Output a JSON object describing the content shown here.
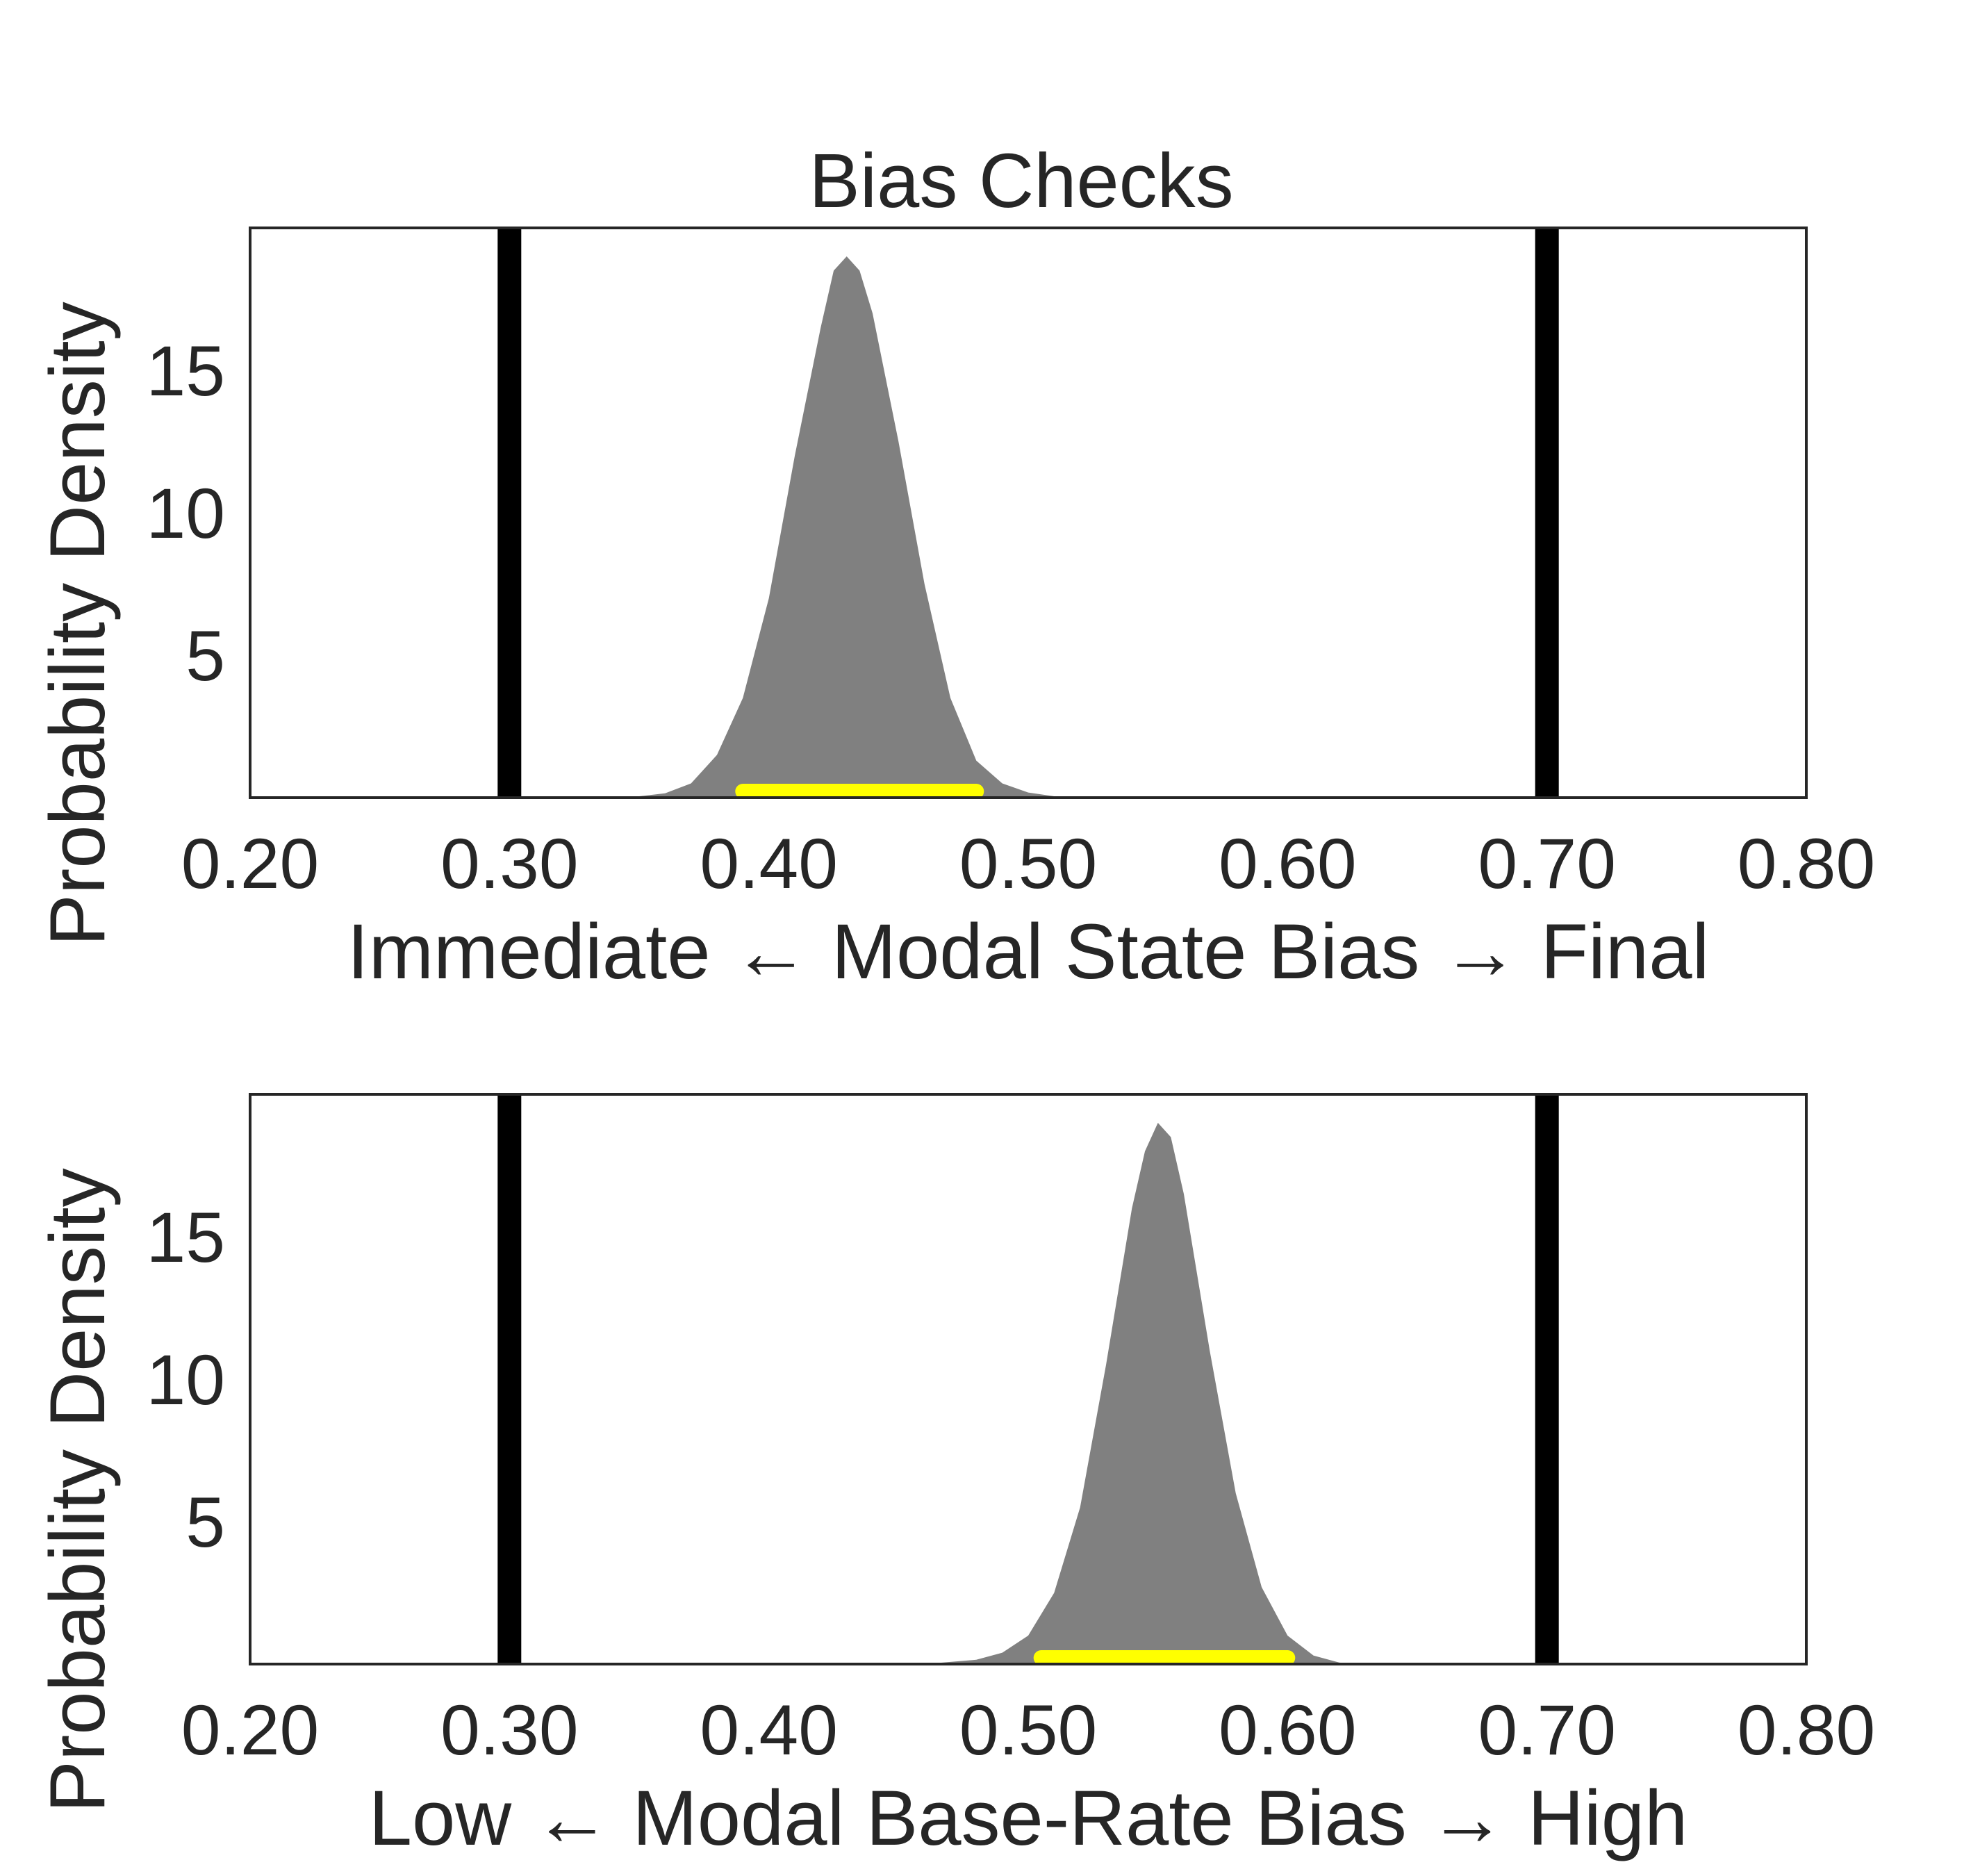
{
  "figure": {
    "title": "Bias Checks"
  },
  "chart_data": [
    {
      "type": "area",
      "subtype": "density",
      "xlabel": "Immediate ← Modal State Bias → Final",
      "ylabel": "Probability Density",
      "xlim": [
        0.2,
        0.8
      ],
      "ylim": [
        0,
        20
      ],
      "xticks": [
        "0.20",
        "0.30",
        "0.40",
        "0.50",
        "0.60",
        "0.70",
        "0.80"
      ],
      "yticks": [
        "5",
        "10",
        "15"
      ],
      "grid": false,
      "density": {
        "x": [
          0.33,
          0.35,
          0.36,
          0.37,
          0.38,
          0.39,
          0.4,
          0.41,
          0.42,
          0.425,
          0.43,
          0.435,
          0.44,
          0.45,
          0.46,
          0.47,
          0.48,
          0.49,
          0.5,
          0.51,
          0.52,
          0.54
        ],
        "y": [
          0.0,
          0.05,
          0.15,
          0.5,
          1.5,
          3.5,
          7.0,
          12.0,
          16.5,
          18.5,
          19.0,
          18.5,
          17.0,
          12.5,
          7.5,
          3.5,
          1.3,
          0.5,
          0.18,
          0.05,
          0.01,
          0.0
        ]
      },
      "vlines": [
        0.3,
        0.7
      ],
      "interval": [
        0.39,
        0.48
      ],
      "colors": {
        "density": "#808080",
        "interval": "#ffff00",
        "vlines": "#000000"
      }
    },
    {
      "type": "area",
      "subtype": "density",
      "xlabel": "Low ← Modal Base-Rate Bias → High",
      "ylabel": "Probability Density",
      "xlim": [
        0.2,
        0.8
      ],
      "ylim": [
        0,
        20
      ],
      "xticks": [
        "0.20",
        "0.30",
        "0.40",
        "0.50",
        "0.60",
        "0.70",
        "0.80"
      ],
      "yticks": [
        "5",
        "10",
        "15"
      ],
      "grid": false,
      "density": {
        "x": [
          0.46,
          0.48,
          0.49,
          0.5,
          0.51,
          0.52,
          0.53,
          0.54,
          0.545,
          0.55,
          0.555,
          0.56,
          0.57,
          0.58,
          0.59,
          0.6,
          0.61,
          0.62,
          0.63
        ],
        "y": [
          0.0,
          0.15,
          0.4,
          1.0,
          2.5,
          5.5,
          10.5,
          16.0,
          18.0,
          19.0,
          18.5,
          16.5,
          11.0,
          6.0,
          2.7,
          1.0,
          0.3,
          0.05,
          0.0
        ]
      },
      "vlines": [
        0.3,
        0.7
      ],
      "interval": [
        0.505,
        0.6
      ],
      "colors": {
        "density": "#808080",
        "interval": "#ffff00",
        "vlines": "#000000"
      }
    }
  ]
}
